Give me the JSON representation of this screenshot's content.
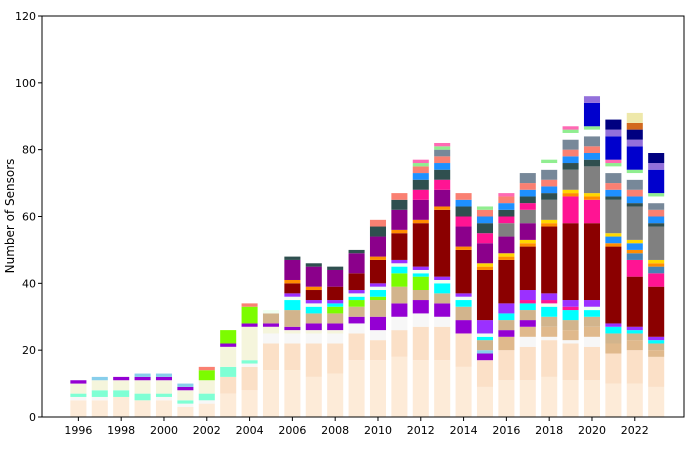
{
  "chart_data": {
    "type": "bar",
    "stacked": true,
    "title": "",
    "xlabel": "",
    "ylabel": "Number of Sensors",
    "ylim": [
      0,
      120
    ],
    "yticks": [
      0,
      20,
      40,
      60,
      80,
      100,
      120
    ],
    "xticks": [
      1996,
      1998,
      2000,
      2002,
      2004,
      2006,
      2008,
      2010,
      2012,
      2014,
      2016,
      2018,
      2020,
      2022
    ],
    "xlim": [
      1994.3,
      2024.3
    ],
    "years": [
      1996,
      1997,
      1998,
      1999,
      2000,
      2001,
      2002,
      2003,
      2004,
      2005,
      2006,
      2007,
      2008,
      2009,
      2010,
      2011,
      2012,
      2013,
      2014,
      2015,
      2016,
      2017,
      2018,
      2019,
      2020,
      2021,
      2022,
      2023
    ],
    "series": [
      {
        "color": "#fdebd8",
        "values": [
          5,
          5,
          6,
          5,
          5,
          3,
          4,
          7,
          8,
          14,
          14,
          12,
          13,
          17,
          17,
          18,
          17,
          17,
          15,
          9,
          11,
          11,
          12,
          11,
          11,
          10,
          10,
          9
        ]
      },
      {
        "color": "#fbe0c7",
        "values": [
          0,
          0,
          0,
          0,
          0,
          0,
          0,
          5,
          7,
          8,
          8,
          10,
          9,
          8,
          6,
          8,
          10,
          10,
          10,
          8,
          9,
          10,
          11,
          11,
          10,
          9,
          10,
          9
        ]
      },
      {
        "color": "#f7f7f7",
        "values": [
          1,
          1,
          0,
          0,
          1,
          1,
          1,
          0,
          1,
          3,
          3,
          3,
          3,
          3,
          3,
          4,
          4,
          3,
          0,
          0,
          0,
          3,
          1,
          1,
          3,
          0,
          0,
          0
        ]
      },
      {
        "color": "#e0b98c",
        "values": [
          0,
          0,
          0,
          0,
          0,
          0,
          0,
          0,
          0,
          0,
          0,
          0,
          0,
          0,
          0,
          0,
          0,
          0,
          0,
          0,
          4,
          3,
          3,
          3,
          3,
          3,
          3,
          2
        ]
      },
      {
        "color": "#7fffd4",
        "values": [
          1,
          2,
          2,
          2,
          1,
          1,
          2,
          3,
          1,
          0,
          0,
          0,
          0,
          0,
          0,
          0,
          0,
          0,
          0,
          0,
          0,
          0,
          0,
          0,
          0,
          0,
          0,
          0
        ]
      },
      {
        "color": "#f5f5dc",
        "values": [
          3,
          3,
          3,
          4,
          4,
          3,
          4,
          6,
          10,
          2,
          1,
          1,
          1,
          0,
          0,
          0,
          0,
          0,
          0,
          0,
          0,
          0,
          0,
          0,
          0,
          0,
          0,
          0
        ]
      },
      {
        "color": "#9400d3",
        "values": [
          1,
          0,
          1,
          1,
          1,
          1,
          0,
          1,
          1,
          1,
          1,
          2,
          2,
          2,
          4,
          4,
          4,
          4,
          4,
          2,
          2,
          2,
          0,
          0,
          0,
          0,
          0,
          0
        ]
      },
      {
        "color": "#87ceeb",
        "values": [
          0,
          1,
          0,
          1,
          1,
          1,
          0,
          0,
          0,
          0,
          0,
          0,
          0,
          0,
          0,
          0,
          0,
          0,
          0,
          1,
          0,
          0,
          0,
          0,
          0,
          0,
          0,
          0
        ]
      },
      {
        "color": "#d2b48c",
        "values": [
          0,
          0,
          0,
          0,
          0,
          0,
          0,
          0,
          0,
          3,
          5,
          3,
          3,
          3,
          5,
          5,
          3,
          3,
          4,
          3,
          3,
          3,
          3,
          3,
          3,
          3,
          2,
          2
        ]
      },
      {
        "color": "#7cfc00",
        "values": [
          0,
          0,
          0,
          0,
          0,
          0,
          3,
          4,
          5,
          0,
          0,
          0,
          2,
          2,
          1,
          4,
          4,
          0,
          0,
          0,
          0,
          0,
          0,
          0,
          0,
          0,
          0,
          0
        ]
      },
      {
        "color": "#00ffff",
        "values": [
          0,
          0,
          0,
          0,
          0,
          0,
          0,
          0,
          0,
          0,
          3,
          2,
          1,
          1,
          2,
          2,
          1,
          3,
          2,
          1,
          2,
          2,
          3,
          3,
          2,
          2,
          1,
          1
        ]
      },
      {
        "color": "#fa8072",
        "values": [
          0,
          0,
          0,
          0,
          0,
          0,
          1,
          0,
          1,
          0,
          0,
          0,
          0,
          0,
          0,
          0,
          0,
          0,
          0,
          0,
          0,
          0,
          0,
          0,
          0,
          0,
          0,
          0
        ]
      },
      {
        "color": "#f0fff0",
        "values": [
          0,
          0,
          0,
          0,
          0,
          0,
          0,
          0,
          0,
          1,
          1,
          1,
          0,
          1,
          1,
          1,
          1,
          1,
          1,
          1,
          0,
          0,
          1,
          0,
          1,
          0,
          0,
          0
        ]
      },
      {
        "color": "#ff1493",
        "values": [
          0,
          0,
          0,
          0,
          0,
          0,
          0,
          0,
          0,
          0,
          0,
          0,
          0,
          0,
          0,
          0,
          0,
          0,
          0,
          0,
          0,
          1,
          1,
          1,
          0,
          0,
          0,
          0
        ]
      },
      {
        "color": "#9b30ff",
        "values": [
          0,
          0,
          0,
          0,
          0,
          0,
          0,
          0,
          0,
          0,
          1,
          1,
          1,
          1,
          1,
          1,
          1,
          1,
          1,
          4,
          3,
          3,
          2,
          2,
          2,
          1,
          1,
          1
        ]
      },
      {
        "color": "#8b0000",
        "values": [
          0,
          0,
          0,
          0,
          0,
          0,
          0,
          0,
          0,
          0,
          3,
          3,
          4,
          5,
          7,
          8,
          13,
          20,
          13,
          15,
          13,
          13,
          20,
          23,
          23,
          23,
          15,
          15
        ]
      },
      {
        "color": "#ff1493",
        "values": [
          0,
          0,
          0,
          0,
          0,
          0,
          0,
          0,
          0,
          0,
          0,
          0,
          0,
          0,
          0,
          0,
          0,
          0,
          0,
          0,
          0,
          0,
          0,
          8,
          7,
          0,
          5,
          4
        ]
      },
      {
        "color": "#4682b4",
        "values": [
          0,
          0,
          0,
          0,
          0,
          0,
          0,
          0,
          0,
          0,
          0,
          0,
          0,
          0,
          0,
          0,
          0,
          0,
          0,
          0,
          0,
          0,
          0,
          0,
          0,
          0,
          2,
          2
        ]
      },
      {
        "color": "#ff8c00",
        "values": [
          0,
          0,
          0,
          0,
          0,
          0,
          0,
          0,
          0,
          0,
          1,
          1,
          0,
          0,
          1,
          1,
          1,
          1,
          1,
          1,
          1,
          1,
          1,
          1,
          1,
          1,
          1,
          1
        ]
      },
      {
        "color": "#1e90ff",
        "values": [
          0,
          0,
          0,
          0,
          0,
          0,
          0,
          0,
          0,
          0,
          0,
          0,
          0,
          0,
          0,
          0,
          0,
          0,
          0,
          0,
          0,
          0,
          0,
          0,
          0,
          2,
          2,
          0
        ]
      },
      {
        "color": "#ffd700",
        "values": [
          0,
          0,
          0,
          0,
          0,
          0,
          0,
          0,
          0,
          0,
          0,
          0,
          0,
          0,
          0,
          0,
          0,
          0,
          0,
          1,
          1,
          1,
          1,
          1,
          1,
          1,
          1,
          1
        ]
      },
      {
        "color": "#8b008b",
        "values": [
          0,
          0,
          0,
          0,
          0,
          0,
          0,
          0,
          0,
          0,
          6,
          6,
          5,
          6,
          6,
          6,
          6,
          5,
          6,
          6,
          5,
          5,
          0,
          0,
          0,
          0,
          0,
          0
        ]
      },
      {
        "color": "#808080",
        "values": [
          0,
          0,
          0,
          0,
          0,
          0,
          0,
          0,
          0,
          0,
          0,
          0,
          0,
          0,
          0,
          0,
          0,
          0,
          0,
          0,
          4,
          4,
          6,
          6,
          8,
          10,
          10,
          10
        ]
      },
      {
        "color": "#ff1493",
        "values": [
          0,
          0,
          0,
          0,
          0,
          0,
          0,
          0,
          0,
          0,
          0,
          0,
          0,
          0,
          0,
          0,
          3,
          3,
          3,
          3,
          2,
          2,
          0,
          0,
          0,
          0,
          0,
          0
        ]
      },
      {
        "color": "#2f4f4f",
        "values": [
          0,
          0,
          0,
          0,
          0,
          0,
          0,
          0,
          0,
          0,
          1,
          1,
          1,
          1,
          3,
          3,
          3,
          3,
          3,
          3,
          2,
          2,
          2,
          2,
          2,
          1,
          1,
          1
        ]
      },
      {
        "color": "#1e90ff",
        "values": [
          0,
          0,
          0,
          0,
          0,
          0,
          0,
          0,
          0,
          0,
          0,
          0,
          0,
          0,
          0,
          0,
          2,
          2,
          2,
          2,
          2,
          2,
          2,
          2,
          2,
          2,
          2,
          2
        ]
      },
      {
        "color": "#fa8072",
        "values": [
          0,
          0,
          0,
          0,
          0,
          0,
          0,
          0,
          0,
          0,
          0,
          0,
          0,
          0,
          2,
          2,
          2,
          2,
          2,
          2,
          2,
          2,
          2,
          2,
          2,
          2,
          2,
          2
        ]
      },
      {
        "color": "#778899",
        "values": [
          0,
          0,
          0,
          0,
          0,
          0,
          0,
          0,
          0,
          0,
          0,
          0,
          0,
          0,
          0,
          0,
          0,
          2,
          0,
          0,
          0,
          3,
          3,
          3,
          3,
          3,
          3,
          2
        ]
      },
      {
        "color": "#ffffff",
        "values": [
          0,
          0,
          0,
          0,
          0,
          0,
          0,
          0,
          0,
          0,
          0,
          0,
          0,
          0,
          0,
          0,
          0,
          0,
          0,
          0,
          0,
          0,
          2,
          2,
          2,
          2,
          2,
          2
        ]
      },
      {
        "color": "#90ee90",
        "values": [
          0,
          0,
          0,
          0,
          0,
          0,
          0,
          0,
          0,
          0,
          0,
          0,
          0,
          0,
          0,
          0,
          1,
          1,
          0,
          1,
          0,
          0,
          1,
          1,
          1,
          1,
          1,
          1
        ]
      },
      {
        "color": "#ff69b4",
        "values": [
          0,
          0,
          0,
          0,
          0,
          0,
          0,
          0,
          0,
          0,
          0,
          0,
          0,
          0,
          0,
          0,
          1,
          1,
          0,
          0,
          1,
          0,
          0,
          1,
          0,
          1,
          0,
          0
        ]
      },
      {
        "color": "#0000cd",
        "values": [
          0,
          0,
          0,
          0,
          0,
          0,
          0,
          0,
          0,
          0,
          0,
          0,
          0,
          0,
          0,
          0,
          0,
          0,
          0,
          0,
          0,
          0,
          0,
          0,
          7,
          7,
          7,
          7
        ]
      },
      {
        "color": "#9370db",
        "values": [
          0,
          0,
          0,
          0,
          0,
          0,
          0,
          0,
          0,
          0,
          0,
          0,
          0,
          0,
          0,
          0,
          0,
          0,
          0,
          0,
          0,
          0,
          0,
          0,
          2,
          2,
          2,
          2
        ]
      },
      {
        "color": "#000080",
        "values": [
          0,
          0,
          0,
          0,
          0,
          0,
          0,
          0,
          0,
          0,
          0,
          0,
          0,
          0,
          0,
          0,
          0,
          0,
          0,
          0,
          0,
          0,
          0,
          0,
          0,
          3,
          3,
          3
        ]
      },
      {
        "color": "#d2691e",
        "values": [
          0,
          0,
          0,
          0,
          0,
          0,
          0,
          0,
          0,
          0,
          0,
          0,
          0,
          0,
          0,
          0,
          0,
          0,
          0,
          0,
          0,
          0,
          0,
          0,
          0,
          0,
          2,
          0
        ]
      },
      {
        "color": "#eee8aa",
        "values": [
          0,
          0,
          0,
          0,
          0,
          0,
          0,
          0,
          0,
          0,
          0,
          0,
          0,
          0,
          0,
          0,
          0,
          0,
          0,
          0,
          0,
          0,
          0,
          0,
          0,
          0,
          3,
          0
        ]
      }
    ]
  }
}
